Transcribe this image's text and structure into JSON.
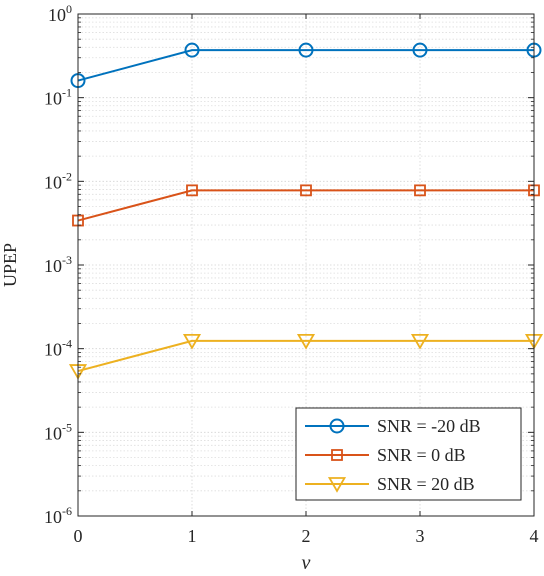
{
  "chart_data": {
    "type": "line",
    "title": "",
    "xlabel": "v",
    "ylabel": "UPEP",
    "x": [
      0,
      1,
      2,
      3,
      4
    ],
    "xlim": [
      0,
      4
    ],
    "ylim": [
      1e-06,
      1
    ],
    "yscale": "log",
    "xticks": [
      "0",
      "1",
      "2",
      "3",
      "4"
    ],
    "yticks": [
      {
        "base": "10",
        "exp": "-6"
      },
      {
        "base": "10",
        "exp": "-5"
      },
      {
        "base": "10",
        "exp": "-4"
      },
      {
        "base": "10",
        "exp": "-3"
      },
      {
        "base": "10",
        "exp": "-2"
      },
      {
        "base": "10",
        "exp": "-1"
      },
      {
        "base": "10",
        "exp": "0"
      }
    ],
    "grid": true,
    "legend_position": "bottom-right",
    "series": [
      {
        "name": "SNR = -20 dB",
        "color": "#0072BD",
        "marker": "circle",
        "values": [
          0.16,
          0.37,
          0.37,
          0.37,
          0.37
        ]
      },
      {
        "name": "SNR = 0 dB",
        "color": "#D95319",
        "marker": "square",
        "values": [
          0.0034,
          0.0078,
          0.0078,
          0.0078,
          0.0078
        ]
      },
      {
        "name": "SNR = 20 dB",
        "color": "#EDB120",
        "marker": "triangle-down",
        "values": [
          5.4e-05,
          0.000124,
          0.000124,
          0.000124,
          0.000124
        ]
      }
    ]
  }
}
